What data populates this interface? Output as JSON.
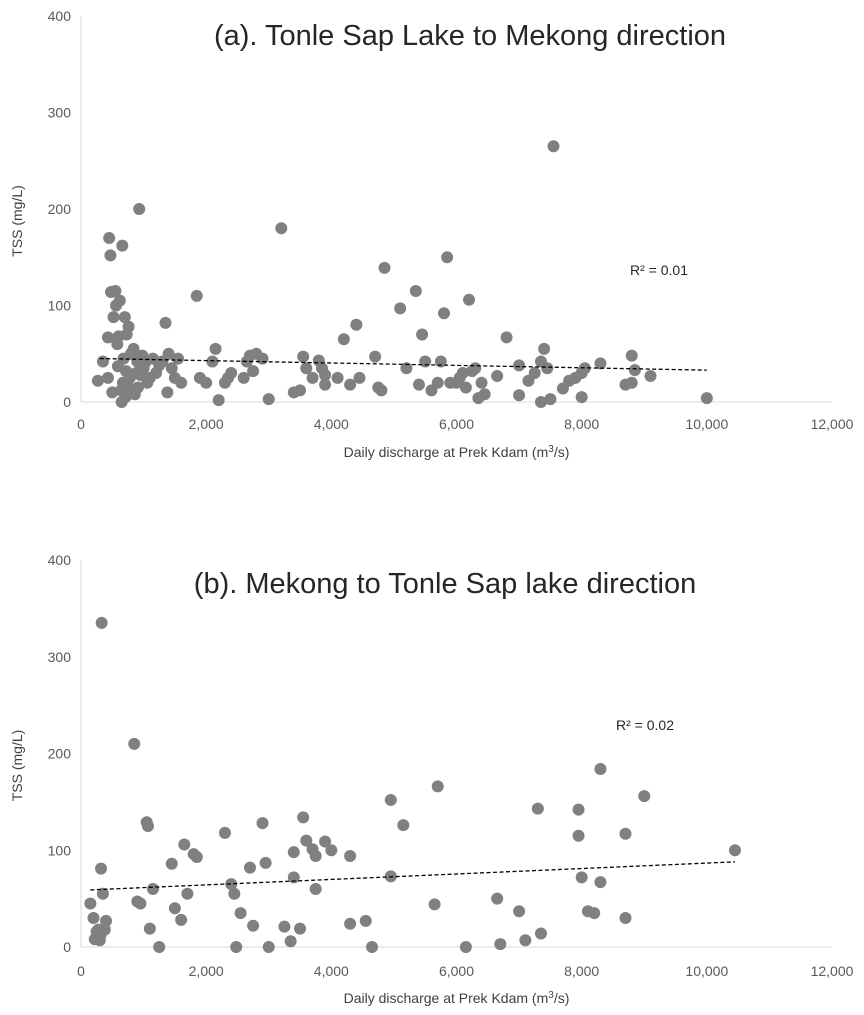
{
  "chart_data": [
    {
      "type": "scatter",
      "title": "(a). Tonle Sap Lake to Mekong direction",
      "xlabel_prefix": "Daily discharge at Prek Kdam (m",
      "xlabel_sup": "3",
      "xlabel_suffix": "/s)",
      "ylabel": "TSS (mg/L)",
      "xlim": [
        0,
        12000
      ],
      "ylim": [
        0,
        400
      ],
      "x_ticks": [
        0,
        2000,
        4000,
        6000,
        8000,
        10000,
        12000
      ],
      "x_tick_labels": [
        "0",
        "2,000",
        "4,000",
        "6,000",
        "8,000",
        "10,000",
        "12,000"
      ],
      "y_ticks": [
        0,
        100,
        200,
        300,
        400
      ],
      "y_tick_labels": [
        "0",
        "100",
        "200",
        "300",
        "400"
      ],
      "r2_label": "R² = 0.01",
      "trendline": {
        "x": [
          300,
          10000
        ],
        "y": [
          45,
          33
        ]
      },
      "grid": false,
      "marker_color": "#808080",
      "points": [
        [
          270,
          22
        ],
        [
          350,
          42
        ],
        [
          430,
          67
        ],
        [
          450,
          170
        ],
        [
          470,
          152
        ],
        [
          480,
          114
        ],
        [
          430,
          25
        ],
        [
          500,
          10
        ],
        [
          520,
          88
        ],
        [
          550,
          115
        ],
        [
          560,
          100
        ],
        [
          580,
          60
        ],
        [
          590,
          37
        ],
        [
          600,
          68
        ],
        [
          620,
          105
        ],
        [
          640,
          12
        ],
        [
          650,
          0
        ],
        [
          660,
          162
        ],
        [
          670,
          20
        ],
        [
          680,
          45
        ],
        [
          700,
          88
        ],
        [
          710,
          5
        ],
        [
          720,
          32
        ],
        [
          730,
          70
        ],
        [
          740,
          18
        ],
        [
          760,
          78
        ],
        [
          780,
          25
        ],
        [
          800,
          50
        ],
        [
          820,
          10
        ],
        [
          840,
          55
        ],
        [
          860,
          8
        ],
        [
          880,
          30
        ],
        [
          900,
          42
        ],
        [
          910,
          15
        ],
        [
          930,
          200
        ],
        [
          950,
          28
        ],
        [
          980,
          48
        ],
        [
          1000,
          35
        ],
        [
          1020,
          40
        ],
        [
          1060,
          20
        ],
        [
          1100,
          25
        ],
        [
          1150,
          45
        ],
        [
          1200,
          30
        ],
        [
          1250,
          38
        ],
        [
          1300,
          42
        ],
        [
          1350,
          82
        ],
        [
          1380,
          10
        ],
        [
          1400,
          50
        ],
        [
          1450,
          35
        ],
        [
          1500,
          25
        ],
        [
          1550,
          45
        ],
        [
          1600,
          20
        ],
        [
          1850,
          110
        ],
        [
          1900,
          25
        ],
        [
          2000,
          20
        ],
        [
          2100,
          42
        ],
        [
          2150,
          55
        ],
        [
          2200,
          2
        ],
        [
          2300,
          20
        ],
        [
          2350,
          25
        ],
        [
          2400,
          30
        ],
        [
          2600,
          25
        ],
        [
          2650,
          42
        ],
        [
          2700,
          48
        ],
        [
          2750,
          32
        ],
        [
          2800,
          50
        ],
        [
          2900,
          45
        ],
        [
          3000,
          3
        ],
        [
          3200,
          180
        ],
        [
          3400,
          10
        ],
        [
          3500,
          12
        ],
        [
          3550,
          47
        ],
        [
          3600,
          35
        ],
        [
          3700,
          25
        ],
        [
          3800,
          43
        ],
        [
          3850,
          35
        ],
        [
          3900,
          18
        ],
        [
          3900,
          28
        ],
        [
          4100,
          25
        ],
        [
          4200,
          65
        ],
        [
          4300,
          18
        ],
        [
          4400,
          80
        ],
        [
          4450,
          25
        ],
        [
          4700,
          47
        ],
        [
          4750,
          15
        ],
        [
          4800,
          12
        ],
        [
          4850,
          139
        ],
        [
          5100,
          97
        ],
        [
          5200,
          35
        ],
        [
          5350,
          115
        ],
        [
          5400,
          18
        ],
        [
          5450,
          70
        ],
        [
          5500,
          42
        ],
        [
          5600,
          12
        ],
        [
          5700,
          20
        ],
        [
          5750,
          42
        ],
        [
          5800,
          92
        ],
        [
          5850,
          150
        ],
        [
          5900,
          20
        ],
        [
          6000,
          20
        ],
        [
          6050,
          25
        ],
        [
          6100,
          30
        ],
        [
          6150,
          15
        ],
        [
          6200,
          106
        ],
        [
          6250,
          32
        ],
        [
          6300,
          35
        ],
        [
          6350,
          4
        ],
        [
          6400,
          20
        ],
        [
          6450,
          8
        ],
        [
          6650,
          27
        ],
        [
          6800,
          67
        ],
        [
          7000,
          7
        ],
        [
          7000,
          38
        ],
        [
          7150,
          22
        ],
        [
          7250,
          30
        ],
        [
          7350,
          42
        ],
        [
          7400,
          55
        ],
        [
          7450,
          35
        ],
        [
          7350,
          0
        ],
        [
          7500,
          3
        ],
        [
          7550,
          265
        ],
        [
          7700,
          14
        ],
        [
          7800,
          22
        ],
        [
          7900,
          25
        ],
        [
          8000,
          30
        ],
        [
          8050,
          35
        ],
        [
          8000,
          5
        ],
        [
          8300,
          40
        ],
        [
          8700,
          18
        ],
        [
          8800,
          48
        ],
        [
          8800,
          20
        ],
        [
          8850,
          33
        ],
        [
          9100,
          27
        ],
        [
          10000,
          4
        ]
      ]
    },
    {
      "type": "scatter",
      "title": "(b). Mekong to Tonle Sap lake direction",
      "xlabel_prefix": "Daily discharge at Prek Kdam (m",
      "xlabel_sup": "3",
      "xlabel_suffix": "/s)",
      "ylabel": "TSS (mg/L)",
      "xlim": [
        0,
        12000
      ],
      "ylim": [
        0,
        400
      ],
      "x_ticks": [
        0,
        2000,
        4000,
        6000,
        8000,
        10000,
        12000
      ],
      "x_tick_labels": [
        "0",
        "2,000",
        "4,000",
        "6,000",
        "8,000",
        "10,000",
        "12,000"
      ],
      "y_ticks": [
        0,
        100,
        200,
        300,
        400
      ],
      "y_tick_labels": [
        "0",
        "100",
        "200",
        "300",
        "400"
      ],
      "r2_label": "R² = 0.02",
      "trendline": {
        "x": [
          150,
          10450
        ],
        "y": [
          59,
          88
        ]
      },
      "grid": false,
      "marker_color": "#808080",
      "points": [
        [
          150,
          45
        ],
        [
          200,
          30
        ],
        [
          220,
          8
        ],
        [
          250,
          16
        ],
        [
          280,
          18
        ],
        [
          300,
          7
        ],
        [
          310,
          12
        ],
        [
          320,
          81
        ],
        [
          330,
          335
        ],
        [
          350,
          55
        ],
        [
          380,
          18
        ],
        [
          400,
          27
        ],
        [
          850,
          210
        ],
        [
          900,
          47
        ],
        [
          950,
          45
        ],
        [
          1050,
          129
        ],
        [
          1070,
          125
        ],
        [
          1100,
          19
        ],
        [
          1150,
          60
        ],
        [
          1250,
          0
        ],
        [
          1450,
          86
        ],
        [
          1500,
          40
        ],
        [
          1600,
          28
        ],
        [
          1650,
          106
        ],
        [
          1700,
          55
        ],
        [
          1800,
          96
        ],
        [
          1850,
          93
        ],
        [
          2300,
          118
        ],
        [
          2400,
          65
        ],
        [
          2450,
          55
        ],
        [
          2480,
          0
        ],
        [
          2550,
          35
        ],
        [
          2700,
          82
        ],
        [
          2750,
          22
        ],
        [
          2900,
          128
        ],
        [
          2950,
          87
        ],
        [
          3000,
          0
        ],
        [
          3250,
          21
        ],
        [
          3350,
          6
        ],
        [
          3400,
          98
        ],
        [
          3400,
          72
        ],
        [
          3500,
          19
        ],
        [
          3550,
          134
        ],
        [
          3600,
          110
        ],
        [
          3700,
          101
        ],
        [
          3750,
          94
        ],
        [
          3750,
          60
        ],
        [
          3900,
          109
        ],
        [
          4000,
          100
        ],
        [
          4300,
          94
        ],
        [
          4300,
          24
        ],
        [
          4550,
          27
        ],
        [
          4650,
          0
        ],
        [
          4950,
          73
        ],
        [
          4950,
          152
        ],
        [
          5150,
          126
        ],
        [
          5650,
          44
        ],
        [
          5700,
          166
        ],
        [
          6150,
          0
        ],
        [
          6650,
          50
        ],
        [
          6700,
          3
        ],
        [
          7000,
          37
        ],
        [
          7100,
          7
        ],
        [
          7300,
          143
        ],
        [
          7350,
          14
        ],
        [
          7950,
          142
        ],
        [
          7950,
          115
        ],
        [
          8000,
          72
        ],
        [
          8100,
          37
        ],
        [
          8200,
          35
        ],
        [
          8300,
          184
        ],
        [
          8300,
          67
        ],
        [
          8700,
          117
        ],
        [
          8700,
          30
        ],
        [
          9000,
          156
        ],
        [
          10450,
          100
        ]
      ]
    }
  ]
}
